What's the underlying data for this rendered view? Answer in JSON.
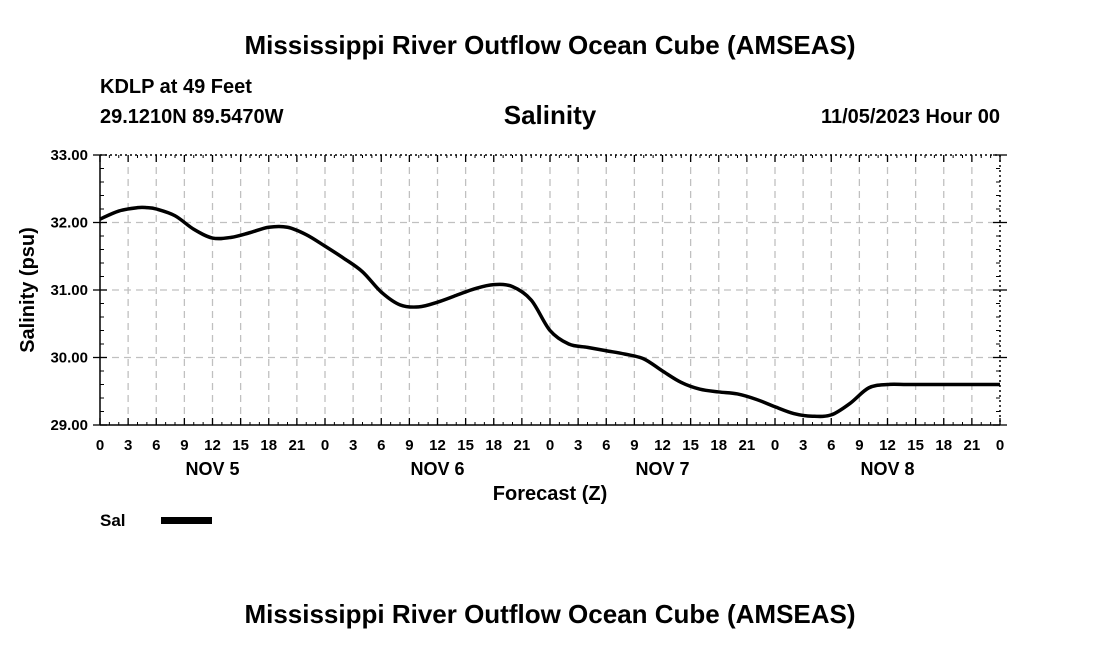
{
  "header": {
    "title": "Mississippi River Outflow Ocean Cube (AMSEAS)",
    "station": "KDLP at 49 Feet",
    "location": "29.1210N  89.5470W",
    "variable": "Salinity",
    "datetime": "11/05/2023 Hour 00"
  },
  "footer": {
    "title": "Mississippi River Outflow Ocean Cube (AMSEAS)"
  },
  "legend": {
    "label": "Sal"
  },
  "colors": {
    "line": "#000000",
    "grid": "#c0c0c0"
  },
  "chart_data": {
    "type": "line",
    "title": "Salinity",
    "xlabel": "Forecast (Z)",
    "ylabel": "Salinity (psu)",
    "xlim": [
      0,
      96
    ],
    "ylim": [
      29.0,
      33.0
    ],
    "grid": true,
    "yticks": [
      "29.00",
      "30.00",
      "31.00",
      "32.00",
      "33.00"
    ],
    "xtick_labels": [
      "0",
      "3",
      "6",
      "9",
      "12",
      "15",
      "18",
      "21",
      "0",
      "3",
      "6",
      "9",
      "12",
      "15",
      "18",
      "21",
      "0",
      "3",
      "6",
      "9",
      "12",
      "15",
      "18",
      "21",
      "0",
      "3",
      "6",
      "9",
      "12",
      "15",
      "18",
      "21",
      "0"
    ],
    "day_labels": [
      "NOV 5",
      "NOV 6",
      "NOV 7",
      "NOV 8"
    ],
    "legend_placement": "bottom-left",
    "series": [
      {
        "name": "Sal",
        "x": [
          0,
          2,
          4,
          5,
          6,
          8,
          10,
          12,
          14,
          16,
          18,
          20,
          22,
          24,
          26,
          28,
          30,
          32,
          34,
          36,
          38,
          40,
          42,
          44,
          46,
          48,
          50,
          52,
          54,
          56,
          58,
          60,
          62,
          64,
          66,
          68,
          70,
          72,
          74,
          76,
          78,
          80,
          82,
          84,
          86,
          88,
          90,
          92,
          94,
          96
        ],
        "y": [
          32.05,
          32.17,
          32.22,
          32.22,
          32.2,
          32.1,
          31.9,
          31.77,
          31.78,
          31.85,
          31.93,
          31.93,
          31.82,
          31.65,
          31.47,
          31.27,
          30.97,
          30.78,
          30.75,
          30.82,
          30.92,
          31.02,
          31.08,
          31.05,
          30.85,
          30.4,
          30.2,
          30.15,
          30.1,
          30.05,
          29.98,
          29.8,
          29.63,
          29.53,
          29.49,
          29.46,
          29.38,
          29.27,
          29.17,
          29.13,
          29.15,
          29.32,
          29.55,
          29.6,
          29.6,
          29.6,
          29.6,
          29.6,
          29.6,
          29.6
        ]
      }
    ]
  }
}
